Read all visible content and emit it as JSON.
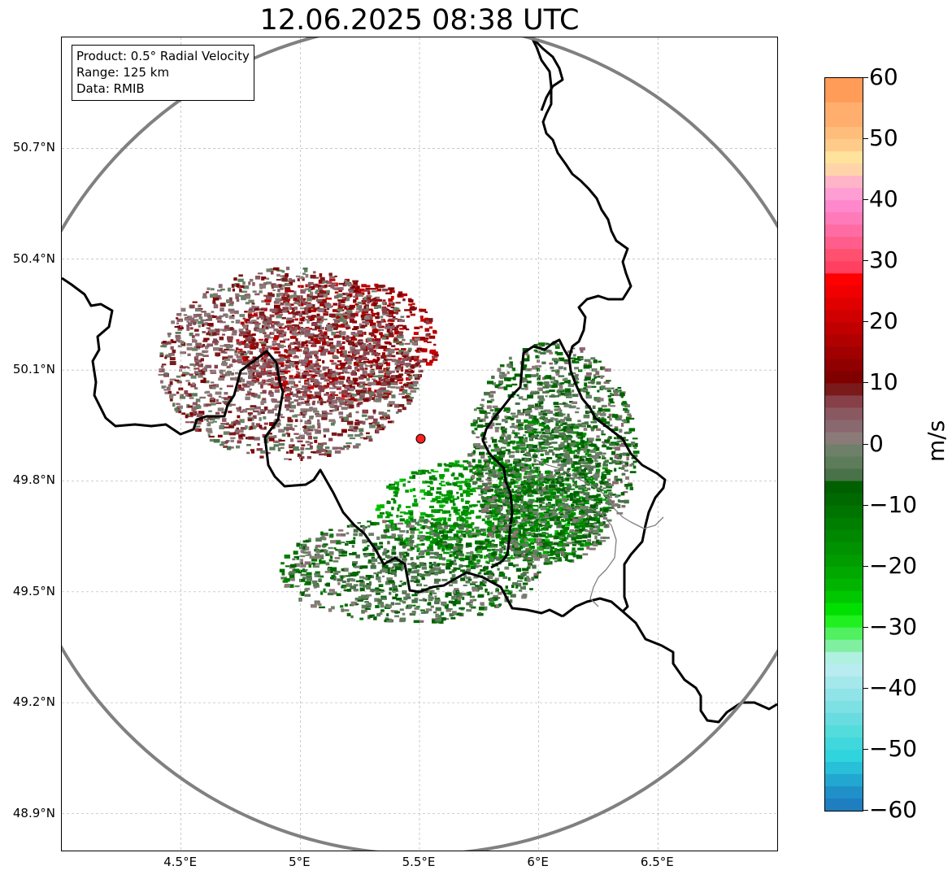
{
  "title": "12.06.2025 08:38 UTC",
  "info_box": {
    "product": "Product: 0.5° Radial Velocity",
    "range": "Range: 125 km",
    "source": "Data: RMIB"
  },
  "map": {
    "lon_range": [
      4.0,
      7.0
    ],
    "lat_range": [
      48.8,
      51.0
    ],
    "radar_site": {
      "lon": 5.505,
      "lat": 49.914
    },
    "radar_range_km": 125,
    "lat_ticks": [
      {
        "value": 48.9,
        "label": "48.9°N"
      },
      {
        "value": 49.2,
        "label": "49.2°N"
      },
      {
        "value": 49.5,
        "label": "49.5°N"
      },
      {
        "value": 49.8,
        "label": "49.8°N"
      },
      {
        "value": 50.1,
        "label": "50.1°N"
      },
      {
        "value": 50.4,
        "label": "50.4°N"
      },
      {
        "value": 50.7,
        "label": "50.7°N"
      }
    ],
    "lon_ticks": [
      {
        "value": 4.5,
        "label": "4.5°E"
      },
      {
        "value": 5.0,
        "label": "5°E"
      },
      {
        "value": 5.5,
        "label": "5.5°E"
      },
      {
        "value": 6.0,
        "label": "6°E"
      },
      {
        "value": 6.5,
        "label": "6.5°E"
      }
    ],
    "colors": {
      "range_ring": "#808080",
      "border": "#000000",
      "grid": "#b4b4b4",
      "radar_marker": "#ff2020"
    }
  },
  "colorbar": {
    "unit": "m/s",
    "min": -60,
    "max": 60,
    "ticks": [
      {
        "value": 60,
        "label": "60"
      },
      {
        "value": 50,
        "label": "50"
      },
      {
        "value": 40,
        "label": "40"
      },
      {
        "value": 30,
        "label": "30"
      },
      {
        "value": 20,
        "label": "20"
      },
      {
        "value": 10,
        "label": "10"
      },
      {
        "value": 0,
        "label": "0"
      },
      {
        "value": -10,
        "label": "−10"
      },
      {
        "value": -20,
        "label": "−20"
      },
      {
        "value": -30,
        "label": "−30"
      },
      {
        "value": -40,
        "label": "−40"
      },
      {
        "value": -50,
        "label": "−50"
      },
      {
        "value": -60,
        "label": "−60"
      }
    ],
    "bands": [
      {
        "from": 56,
        "to": 60,
        "color": "#ff9c58"
      },
      {
        "from": 52,
        "to": 56,
        "color": "#ffae6e"
      },
      {
        "from": 50,
        "to": 52,
        "color": "#ffbd7c"
      },
      {
        "from": 48,
        "to": 50,
        "color": "#ffcb8a"
      },
      {
        "from": 46,
        "to": 48,
        "color": "#ffe29c"
      },
      {
        "from": 44,
        "to": 46,
        "color": "#ffd4a8"
      },
      {
        "from": 42,
        "to": 44,
        "color": "#ffb4c8"
      },
      {
        "from": 40,
        "to": 42,
        "color": "#ff9ed4"
      },
      {
        "from": 38,
        "to": 40,
        "color": "#ff88cc"
      },
      {
        "from": 36,
        "to": 38,
        "color": "#ff7ab8"
      },
      {
        "from": 34,
        "to": 36,
        "color": "#ff6ca4"
      },
      {
        "from": 32,
        "to": 34,
        "color": "#ff5e8c"
      },
      {
        "from": 30,
        "to": 32,
        "color": "#ff5070"
      },
      {
        "from": 28,
        "to": 30,
        "color": "#ff4060"
      },
      {
        "from": 26,
        "to": 28,
        "color": "#ff0000"
      },
      {
        "from": 24,
        "to": 26,
        "color": "#f00000"
      },
      {
        "from": 22,
        "to": 24,
        "color": "#e00000"
      },
      {
        "from": 20,
        "to": 22,
        "color": "#d00000"
      },
      {
        "from": 18,
        "to": 20,
        "color": "#c00000"
      },
      {
        "from": 16,
        "to": 18,
        "color": "#b00000"
      },
      {
        "from": 14,
        "to": 16,
        "color": "#a00000"
      },
      {
        "from": 12,
        "to": 14,
        "color": "#900000"
      },
      {
        "from": 10,
        "to": 12,
        "color": "#800000"
      },
      {
        "from": 8,
        "to": 10,
        "color": "#7a1a1a"
      },
      {
        "from": 6,
        "to": 8,
        "color": "#884048"
      },
      {
        "from": 4,
        "to": 6,
        "color": "#8a5860"
      },
      {
        "from": 2,
        "to": 4,
        "color": "#8a6870"
      },
      {
        "from": 0,
        "to": 2,
        "color": "#8a7a78"
      },
      {
        "from": -2,
        "to": 0,
        "color": "#6e806a"
      },
      {
        "from": -4,
        "to": -2,
        "color": "#5c7c5a"
      },
      {
        "from": -6,
        "to": -4,
        "color": "#4a7248"
      },
      {
        "from": -8,
        "to": -6,
        "color": "#006000"
      },
      {
        "from": -10,
        "to": -8,
        "color": "#006a00"
      },
      {
        "from": -12,
        "to": -10,
        "color": "#007400"
      },
      {
        "from": -14,
        "to": -12,
        "color": "#007e00"
      },
      {
        "from": -16,
        "to": -14,
        "color": "#008800"
      },
      {
        "from": -18,
        "to": -16,
        "color": "#009200"
      },
      {
        "from": -20,
        "to": -18,
        "color": "#009c00"
      },
      {
        "from": -22,
        "to": -20,
        "color": "#00a800"
      },
      {
        "from": -24,
        "to": -22,
        "color": "#00b400"
      },
      {
        "from": -26,
        "to": -24,
        "color": "#00c800"
      },
      {
        "from": -28,
        "to": -26,
        "color": "#00e000"
      },
      {
        "from": -30,
        "to": -28,
        "color": "#20f020"
      },
      {
        "from": -32,
        "to": -30,
        "color": "#50f060"
      },
      {
        "from": -34,
        "to": -32,
        "color": "#80f0a0"
      },
      {
        "from": -36,
        "to": -34,
        "color": "#b0f0e0"
      },
      {
        "from": -38,
        "to": -36,
        "color": "#b8ecf0"
      },
      {
        "from": -40,
        "to": -38,
        "color": "#a4e8ec"
      },
      {
        "from": -42,
        "to": -40,
        "color": "#90e4e8"
      },
      {
        "from": -44,
        "to": -42,
        "color": "#7ce0e4"
      },
      {
        "from": -46,
        "to": -44,
        "color": "#68dce0"
      },
      {
        "from": -48,
        "to": -46,
        "color": "#54dcdc"
      },
      {
        "from": -50,
        "to": -48,
        "color": "#40d8dc"
      },
      {
        "from": -52,
        "to": -50,
        "color": "#30d4dc"
      },
      {
        "from": -54,
        "to": -52,
        "color": "#28c0d8"
      },
      {
        "from": -56,
        "to": -54,
        "color": "#22a8d0"
      },
      {
        "from": -58,
        "to": -56,
        "color": "#2090c8"
      },
      {
        "from": -60,
        "to": -58,
        "color": "#1e7ec0"
      }
    ]
  },
  "velocity_field": {
    "description_units": "lon/lat, m/s",
    "regions": [
      {
        "name": "inbound-north-core",
        "lon": 5.15,
        "lat": 50.18,
        "r_lon": 0.42,
        "r_lat": 0.17,
        "velocity": 14
      },
      {
        "name": "inbound-north-edge",
        "lon": 4.95,
        "lat": 50.12,
        "r_lon": 0.55,
        "r_lat": 0.26,
        "velocity": 4
      },
      {
        "name": "outbound-southeast-core",
        "lon": 5.75,
        "lat": 49.72,
        "r_lon": 0.45,
        "r_lat": 0.14,
        "velocity": -18
      },
      {
        "name": "outbound-east-core",
        "lon": 6.02,
        "lat": 49.78,
        "r_lon": 0.28,
        "r_lat": 0.2,
        "velocity": -12
      },
      {
        "name": "outbound-east-edge",
        "lon": 6.05,
        "lat": 49.88,
        "r_lon": 0.35,
        "r_lat": 0.3,
        "velocity": -4
      },
      {
        "name": "outbound-south-edge",
        "lon": 5.45,
        "lat": 49.56,
        "r_lon": 0.55,
        "r_lat": 0.14,
        "velocity": -5
      }
    ]
  }
}
